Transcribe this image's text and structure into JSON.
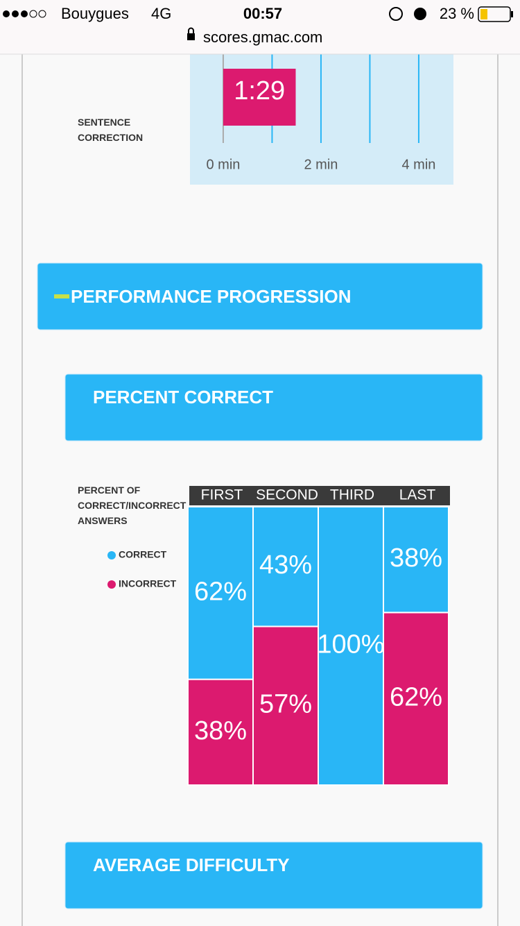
{
  "status_bar": {
    "carrier": "Bouygues",
    "network": "4G",
    "time": "00:57",
    "battery": "23 %"
  },
  "url": "scores.gmac.com",
  "sections": [
    "PERFORMANCE PROGRESSION",
    "PERCENT CORRECT",
    "AVERAGE DIFFICULTY"
  ],
  "chart_data": [
    {
      "type": "bar",
      "orientation": "horizontal",
      "categories": [
        "SENTENCE CORRECTION"
      ],
      "values": [
        1.483
      ],
      "value_labels": [
        "1:29"
      ],
      "color": "#dc1a6f",
      "xlim": [
        -0.68,
        4.71
      ],
      "xticks": [
        {
          "value": 0,
          "label": "0 min"
        },
        {
          "value": 1,
          "label": null
        },
        {
          "value": 2,
          "label": "2 min"
        },
        {
          "value": 3,
          "label": null
        },
        {
          "value": 4,
          "label": "4 min"
        }
      ],
      "grid": true
    },
    {
      "type": "stacked_bar",
      "y_label": "PERCENT OF CORRECT/INCORRECT ANSWERS",
      "categories": [
        "FIRST",
        "SECOND",
        "THIRD",
        "LAST"
      ],
      "series": [
        {
          "name": "CORRECT",
          "color": "#29b6f6",
          "values": [
            62,
            43,
            100,
            38
          ],
          "value_labels": [
            "62%",
            "43%",
            "100%",
            "38%"
          ]
        },
        {
          "name": "INCORRECT",
          "color": "#dc1a6f",
          "values": [
            38,
            57,
            0,
            62
          ],
          "value_labels": [
            "38%",
            "57%",
            null,
            "62%"
          ]
        }
      ],
      "ylim": [
        0,
        100
      ]
    }
  ]
}
